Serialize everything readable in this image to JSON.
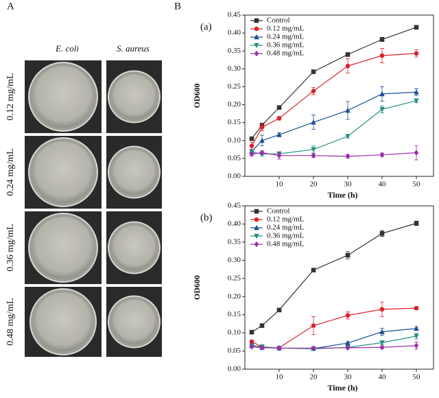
{
  "panel_a": {
    "label": "A",
    "columns": [
      "E. coli",
      "S. aureus"
    ],
    "rows": [
      "0.12 mg/mL",
      "0.24 mg/mL",
      "0.36 mg/mL",
      "0.48 mg/mL"
    ]
  },
  "panel_b": {
    "label": "B"
  },
  "chart_data": [
    {
      "type": "line",
      "panel_label": "(a)",
      "x_label": "Time (h)",
      "y_label": "OD600",
      "x": [
        2,
        5,
        10,
        20,
        30,
        40,
        50
      ],
      "xlim": [
        0,
        55
      ],
      "xticks": [
        10,
        20,
        30,
        40,
        50
      ],
      "ylim": [
        0,
        0.45
      ],
      "yticks": [
        {
          "value": 0,
          "label": "0.00"
        },
        {
          "value": 0.05,
          "label": "0.05"
        },
        {
          "value": 0.1,
          "label": "0.10"
        },
        {
          "value": 0.15,
          "label": "0.15"
        },
        {
          "value": 0.2,
          "label": "0.20"
        },
        {
          "value": 0.25,
          "label": "0.25"
        },
        {
          "value": 0.3,
          "label": "0.30"
        },
        {
          "value": 0.35,
          "label": "0.35"
        },
        {
          "value": 0.4,
          "label": "0.40"
        },
        {
          "value": 0.45,
          "label": "0.45"
        }
      ],
      "legend": "upper left",
      "series": [
        {
          "name": "Control",
          "color": "#333333",
          "marker": "square",
          "values": [
            0.105,
            0.143,
            0.192,
            0.292,
            0.34,
            0.382,
            0.416
          ],
          "errors": [
            0.005,
            0.005,
            0.004,
            0.005,
            0.005,
            0.006,
            0.005
          ]
        },
        {
          "name": "0.12 mg/mL",
          "color": "#d8232a",
          "marker": "circle",
          "values": [
            0.085,
            0.137,
            0.162,
            0.238,
            0.308,
            0.337,
            0.343
          ],
          "errors": [
            0.01,
            0.01,
            0.005,
            0.01,
            0.02,
            0.02,
            0.01
          ]
        },
        {
          "name": "0.24 mg/mL",
          "color": "#1f4e96",
          "marker": "triangle-up",
          "values": [
            0.069,
            0.1,
            0.116,
            0.151,
            0.184,
            0.23,
            0.235
          ],
          "errors": [
            0.005,
            0.015,
            0.005,
            0.02,
            0.025,
            0.02,
            0.01
          ]
        },
        {
          "name": "0.36 mg/mL",
          "color": "#2a8f86",
          "marker": "triangle-down",
          "values": [
            0.068,
            0.062,
            0.063,
            0.075,
            0.112,
            0.187,
            0.211
          ],
          "errors": [
            0.005,
            0.005,
            0.005,
            0.01,
            0.005,
            0.01,
            0.005
          ]
        },
        {
          "name": "0.48 mg/mL",
          "color": "#9b2ea6",
          "marker": "diamond",
          "values": [
            0.062,
            0.066,
            0.058,
            0.058,
            0.056,
            0.06,
            0.066
          ],
          "errors": [
            0.005,
            0.005,
            0.01,
            0.005,
            0.005,
            0.005,
            0.02
          ]
        }
      ]
    },
    {
      "type": "line",
      "panel_label": "(b)",
      "x_label": "Time (h)",
      "y_label": "OD600",
      "x": [
        2,
        5,
        10,
        20,
        30,
        40,
        50
      ],
      "xlim": [
        0,
        55
      ],
      "xticks": [
        10,
        20,
        30,
        40,
        50
      ],
      "ylim": [
        0,
        0.45
      ],
      "yticks": [
        {
          "value": 0,
          "label": "0.00"
        },
        {
          "value": 0.05,
          "label": "0.05"
        },
        {
          "value": 0.1,
          "label": "0.10"
        },
        {
          "value": 0.15,
          "label": "0.15"
        },
        {
          "value": 0.2,
          "label": "0.20"
        },
        {
          "value": 0.25,
          "label": "0.25"
        },
        {
          "value": 0.3,
          "label": "0.30"
        },
        {
          "value": 0.35,
          "label": "0.35"
        },
        {
          "value": 0.4,
          "label": "0.40"
        },
        {
          "value": 0.45,
          "label": "0.45"
        }
      ],
      "legend": "upper left",
      "series": [
        {
          "name": "Control",
          "color": "#333333",
          "marker": "square",
          "values": [
            0.102,
            0.12,
            0.163,
            0.273,
            0.314,
            0.374,
            0.402
          ],
          "errors": [
            0.004,
            0.004,
            0.004,
            0.005,
            0.01,
            0.008,
            0.006
          ]
        },
        {
          "name": "0.12 mg/mL",
          "color": "#d8232a",
          "marker": "circle",
          "values": [
            0.076,
            0.061,
            0.059,
            0.12,
            0.148,
            0.165,
            0.168
          ],
          "errors": [
            0.004,
            0.004,
            0.003,
            0.025,
            0.01,
            0.02,
            0.004
          ]
        },
        {
          "name": "0.24 mg/mL",
          "color": "#1f4e96",
          "marker": "triangle-up",
          "values": [
            0.066,
            0.06,
            0.058,
            0.057,
            0.072,
            0.103,
            0.112
          ],
          "errors": [
            0.004,
            0.003,
            0.003,
            0.003,
            0.003,
            0.01,
            0.005
          ]
        },
        {
          "name": "0.36 mg/mL",
          "color": "#2a8f86",
          "marker": "triangle-down",
          "values": [
            0.064,
            0.062,
            0.058,
            0.056,
            0.06,
            0.073,
            0.091
          ],
          "errors": [
            0.003,
            0.003,
            0.003,
            0.003,
            0.003,
            0.006,
            0.008
          ]
        },
        {
          "name": "0.48 mg/mL",
          "color": "#9b2ea6",
          "marker": "diamond",
          "values": [
            0.062,
            0.059,
            0.058,
            0.058,
            0.059,
            0.06,
            0.065
          ],
          "errors": [
            0.003,
            0.003,
            0.003,
            0.003,
            0.003,
            0.003,
            0.01
          ]
        }
      ]
    }
  ]
}
